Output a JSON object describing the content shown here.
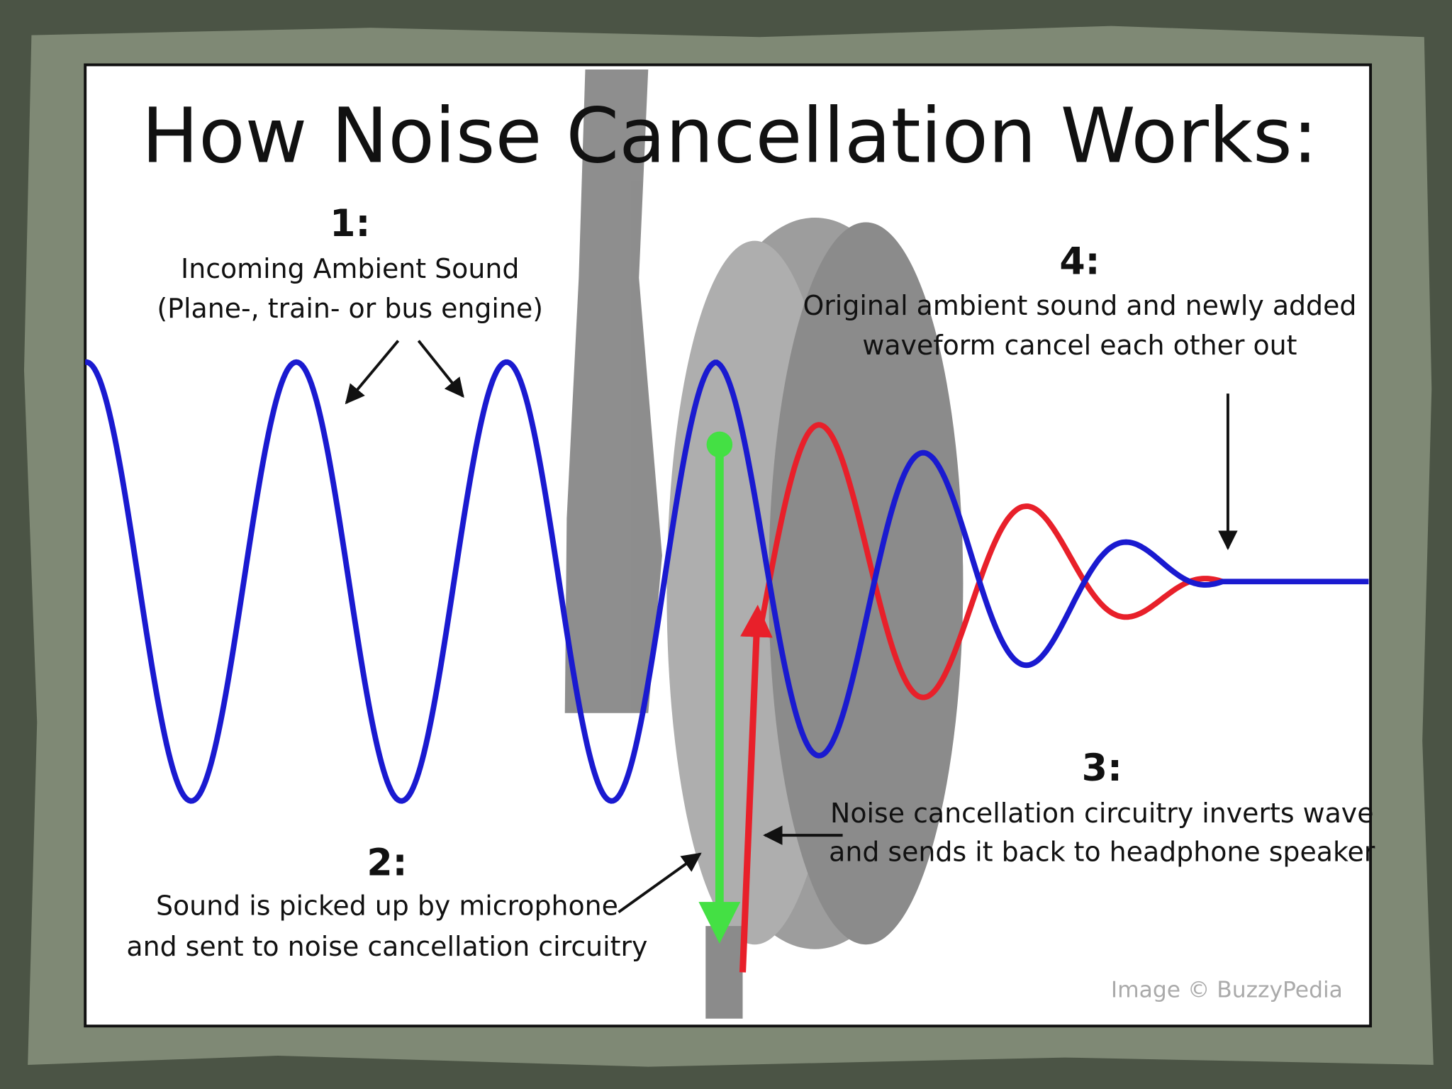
{
  "title": "How Noise Cancellation Works:",
  "steps": [
    {
      "number": "1:",
      "lines": [
        "Incoming Ambient Sound",
        "(Plane-, train- or bus engine)"
      ]
    },
    {
      "number": "2:",
      "lines": [
        "Sound is picked up by microphone",
        "and sent to noise cancellation circuitry"
      ]
    },
    {
      "number": "3:",
      "lines": [
        "Noise cancellation circuitry inverts wave",
        "and sends it back to headphone speaker"
      ]
    },
    {
      "number": "4:",
      "lines": [
        "Original ambient sound and newly added",
        "waveform cancel each other out"
      ]
    }
  ],
  "credit": "Image © BuzzyPedia"
}
